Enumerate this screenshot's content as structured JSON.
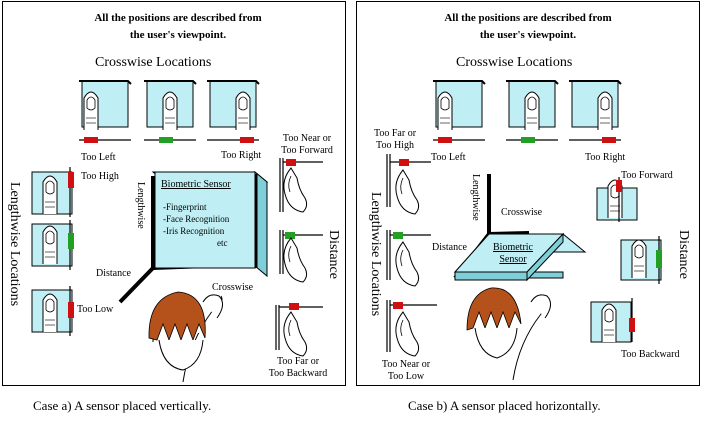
{
  "note": {
    "line1": "All the positions are described from",
    "line2": "the user's viewpoint."
  },
  "crosswise_locations": "Crosswise Locations",
  "lengthwise_locations": "Lengthwise Locations",
  "distance": "Distance",
  "lengthwise": "Lengthwise",
  "crosswise": "Crosswise",
  "case_a": {
    "caption": "Case a) A sensor placed vertically.",
    "too_left": "Too Left",
    "too_right": "Too Right",
    "too_high": "Too High",
    "too_low": "Too Low",
    "too_near_line1": "Too Near or",
    "too_near_line2": "Too Forward",
    "too_far_line1": "Too Far or",
    "too_far_line2": "Too Backward",
    "sensor_title": "Biometric Sensor",
    "sensor_items": [
      "-Fingerprint",
      "-Face Recognition",
      "-Iris Recognition",
      "etc"
    ]
  },
  "case_b": {
    "caption": "Case b) A sensor placed horizontally.",
    "too_left": "Too Left",
    "too_right": "Too Right",
    "too_far_high_line1": "Too Far or",
    "too_far_high_line2": "Too High",
    "too_near_low_line1": "Too Near or",
    "too_near_low_line2": "Too Low",
    "too_forward": "Too Forward",
    "too_backward": "Too Backward",
    "sensor_title_line1": "Biometric",
    "sensor_title_line2": "Sensor"
  },
  "colors": {
    "wrong": "#d01010",
    "correct": "#23a023",
    "sensor_face": "#bfeff4",
    "sensor_side": "#7fcfd8",
    "hair": "#b5521b"
  }
}
